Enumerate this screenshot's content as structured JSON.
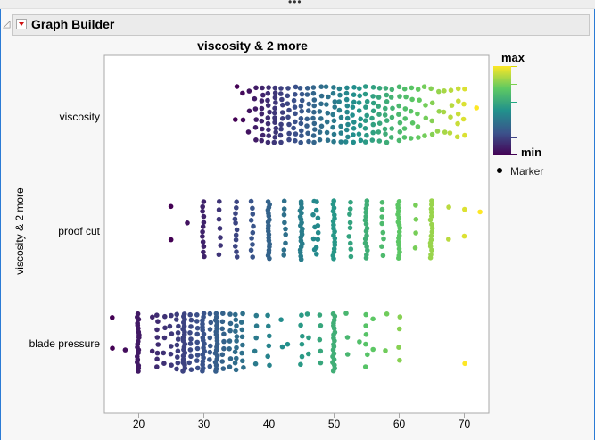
{
  "window": {
    "more_indicator": "•••"
  },
  "header": {
    "title": "Graph Builder"
  },
  "chart_data": {
    "type": "scatter",
    "title": "viscosity & 2 more",
    "ylabel": "viscosity & 2 more",
    "xlabel": "",
    "xlim": [
      14.8,
      73.8
    ],
    "xticks": [
      "20",
      "30",
      "40",
      "50",
      "60",
      "70"
    ],
    "categories": [
      "viscosity",
      "proof cut",
      "blade pressure"
    ],
    "grid": false,
    "color_scale": {
      "type": "viridis",
      "min_label": "min",
      "max_label": "max",
      "colors": [
        "#440154",
        "#3b528b",
        "#21918c",
        "#5ec962",
        "#fde725"
      ]
    },
    "legend": {
      "position": "right",
      "marker_label": "Marker"
    },
    "series": [
      {
        "category": "viscosity",
        "points": [
          [
            35,
            2
          ],
          [
            36,
            2
          ],
          [
            37,
            3
          ],
          [
            38,
            6
          ],
          [
            39,
            9
          ],
          [
            40,
            10
          ],
          [
            41,
            12
          ],
          [
            42,
            10
          ],
          [
            43,
            8
          ],
          [
            44,
            9
          ],
          [
            45,
            10
          ],
          [
            46,
            8
          ],
          [
            47,
            10
          ],
          [
            48,
            8
          ],
          [
            49,
            7
          ],
          [
            50,
            9
          ],
          [
            51,
            8
          ],
          [
            52,
            10
          ],
          [
            53,
            9
          ],
          [
            54,
            8
          ],
          [
            55,
            9
          ],
          [
            56,
            8
          ],
          [
            57,
            7
          ],
          [
            58,
            9
          ],
          [
            59,
            6
          ],
          [
            60,
            7
          ],
          [
            61,
            6
          ],
          [
            62,
            5
          ],
          [
            63,
            5
          ],
          [
            64,
            4
          ],
          [
            65,
            4
          ],
          [
            66,
            3
          ],
          [
            67,
            3
          ],
          [
            68,
            4
          ],
          [
            69,
            5
          ],
          [
            70,
            4
          ],
          [
            72,
            1
          ]
        ]
      },
      {
        "category": "proof cut",
        "points": [
          [
            25,
            2
          ],
          [
            27.5,
            1
          ],
          [
            30,
            12
          ],
          [
            32.5,
            7
          ],
          [
            35,
            11
          ],
          [
            37.5,
            10
          ],
          [
            40,
            20
          ],
          [
            42.5,
            9
          ],
          [
            45,
            20
          ],
          [
            47,
            5
          ],
          [
            47.5,
            8
          ],
          [
            50,
            18
          ],
          [
            52.5,
            9
          ],
          [
            55,
            16
          ],
          [
            57.5,
            8
          ],
          [
            60,
            18
          ],
          [
            62.5,
            4
          ],
          [
            65,
            16
          ],
          [
            67.5,
            2
          ],
          [
            70,
            2
          ],
          [
            72.5,
            1
          ]
        ]
      },
      {
        "category": "blade pressure",
        "points": [
          [
            16,
            2
          ],
          [
            18,
            1
          ],
          [
            20,
            20
          ],
          [
            22,
            2
          ],
          [
            23,
            8
          ],
          [
            24,
            5
          ],
          [
            25,
            6
          ],
          [
            26,
            10
          ],
          [
            27,
            20
          ],
          [
            28,
            10
          ],
          [
            29,
            9
          ],
          [
            30,
            18
          ],
          [
            31,
            8
          ],
          [
            32,
            20
          ],
          [
            33,
            9
          ],
          [
            34,
            7
          ],
          [
            35,
            11
          ],
          [
            36,
            8
          ],
          [
            38,
            5
          ],
          [
            40,
            6
          ],
          [
            42,
            2
          ],
          [
            43,
            1
          ],
          [
            45,
            6
          ],
          [
            46,
            3
          ],
          [
            48,
            5
          ],
          [
            50,
            20
          ],
          [
            52,
            3
          ],
          [
            54,
            1
          ],
          [
            55,
            6
          ],
          [
            56,
            2
          ],
          [
            58,
            2
          ],
          [
            60,
            4
          ],
          [
            70,
            1
          ]
        ]
      }
    ]
  }
}
